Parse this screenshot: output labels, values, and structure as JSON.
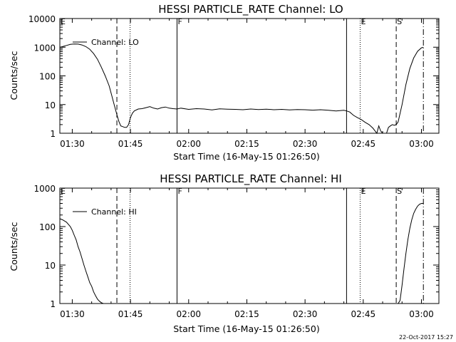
{
  "footer": {
    "timestamp": "22-Oct-2017 15:27"
  },
  "chart_data": [
    {
      "type": "line",
      "title": "HESSI PARTICLE_RATE Channel: LO",
      "xlabel": "Start Time (16-May-15 01:26:50)",
      "ylabel": "Counts/sec",
      "yscale": "log",
      "ylim": [
        1,
        10000
      ],
      "xlim_minutes": [
        86.8,
        184.5
      ],
      "x_ticks": [
        {
          "minute": 90,
          "label": "01:30"
        },
        {
          "minute": 105,
          "label": "01:45"
        },
        {
          "minute": 120,
          "label": "02:00"
        },
        {
          "minute": 135,
          "label": "02:15"
        },
        {
          "minute": 150,
          "label": "02:30"
        },
        {
          "minute": 165,
          "label": "02:45"
        },
        {
          "minute": 180,
          "label": "03:00"
        }
      ],
      "y_ticks": [
        {
          "value": 1,
          "label": "1"
        },
        {
          "value": 10,
          "label": "10"
        },
        {
          "value": 100,
          "label": "100"
        },
        {
          "value": 1000,
          "label": "1000"
        },
        {
          "value": 10000,
          "label": "10000"
        }
      ],
      "legend": {
        "label": "Channel: LO",
        "position": "top-left"
      },
      "markers": [
        {
          "minute": 86.8,
          "label": "E",
          "style": "solid"
        },
        {
          "minute": 101.5,
          "label": "",
          "style": "dashed"
        },
        {
          "minute": 104.9,
          "label": "",
          "style": "dotted"
        },
        {
          "minute": 117.0,
          "label": "F",
          "style": "solid"
        },
        {
          "minute": 160.7,
          "label": "",
          "style": "solid"
        },
        {
          "minute": 164.2,
          "label": "E",
          "style": "dotted"
        },
        {
          "minute": 173.5,
          "label": "S",
          "style": "dashed"
        },
        {
          "minute": 180.5,
          "label": "",
          "style": "dashdot"
        }
      ],
      "series": [
        {
          "x": [
            86.8,
            87.5,
            88.5,
            89.5,
            90.5,
            91.5,
            92.5,
            93.5,
            94.5,
            95.5,
            96.5,
            97.5,
            98.5,
            99.5,
            100.2,
            100.8,
            101.5,
            102.0,
            102.5,
            103.0,
            103.5,
            104.0,
            104.5,
            105.0,
            105.5,
            106.0,
            107.0,
            108.0,
            109.0,
            110.0,
            111.0,
            112.0,
            113.0,
            114.0,
            115.0,
            116.0,
            117.0,
            118.0,
            120.0,
            122.0,
            124.0,
            126.0,
            128.0,
            130.0,
            132.0,
            134.0,
            136.0,
            138.0,
            140.0,
            142.0,
            144.0,
            146.0,
            148.0,
            150.0,
            152.0,
            154.0,
            156.0,
            158.0,
            160.0,
            160.7,
            161.5,
            162.5,
            163.5,
            164.5,
            165.5,
            166.5,
            167.5,
            168.5,
            169.0,
            169.5,
            170.0,
            170.5,
            171.0,
            171.5,
            172.0,
            172.5,
            173.0,
            173.5,
            174.0,
            175.0,
            176.0,
            177.0,
            178.0,
            179.0,
            180.0,
            180.5
          ],
          "y": [
            1000,
            1050,
            1150,
            1250,
            1300,
            1280,
            1200,
            1050,
            850,
            600,
            380,
            200,
            100,
            45,
            20,
            10,
            4.5,
            2.6,
            1.8,
            1.7,
            1.6,
            1.6,
            2.0,
            3.5,
            5.0,
            6.0,
            7.0,
            7.2,
            7.8,
            8.5,
            7.5,
            7.0,
            7.8,
            8.2,
            7.5,
            7.2,
            7.0,
            7.5,
            6.8,
            7.2,
            7.0,
            6.5,
            7.1,
            6.9,
            6.8,
            6.6,
            7.0,
            6.7,
            6.9,
            6.6,
            6.8,
            6.5,
            6.7,
            6.6,
            6.4,
            6.6,
            6.3,
            6.0,
            6.3,
            6.0,
            5.5,
            4.2,
            3.5,
            3.0,
            2.4,
            2.0,
            1.5,
            1.0,
            1.8,
            1.2,
            1.0,
            0.9,
            1.0,
            1.6,
            1.8,
            2.0,
            1.9,
            2.0,
            2.5,
            10,
            50,
            180,
            420,
            720,
            950,
            1000
          ]
        }
      ]
    },
    {
      "type": "line",
      "title": "HESSI PARTICLE_RATE Channel: HI",
      "xlabel": "Start Time (16-May-15 01:26:50)",
      "ylabel": "Counts/sec",
      "yscale": "log",
      "ylim": [
        1,
        1000
      ],
      "xlim_minutes": [
        86.8,
        184.5
      ],
      "x_ticks": [
        {
          "minute": 90,
          "label": "01:30"
        },
        {
          "minute": 105,
          "label": "01:45"
        },
        {
          "minute": 120,
          "label": "02:00"
        },
        {
          "minute": 135,
          "label": "02:15"
        },
        {
          "minute": 150,
          "label": "02:30"
        },
        {
          "minute": 165,
          "label": "02:45"
        },
        {
          "minute": 180,
          "label": "03:00"
        }
      ],
      "y_ticks": [
        {
          "value": 1,
          "label": "1"
        },
        {
          "value": 10,
          "label": "10"
        },
        {
          "value": 100,
          "label": "100"
        },
        {
          "value": 1000,
          "label": "1000"
        }
      ],
      "legend": {
        "label": "Channel: HI",
        "position": "top-left"
      },
      "markers": [
        {
          "minute": 86.8,
          "label": "E",
          "style": "solid"
        },
        {
          "minute": 101.5,
          "label": "",
          "style": "dashed"
        },
        {
          "minute": 104.9,
          "label": "",
          "style": "dotted"
        },
        {
          "minute": 117.0,
          "label": "F",
          "style": "solid"
        },
        {
          "minute": 160.7,
          "label": "",
          "style": "solid"
        },
        {
          "minute": 164.2,
          "label": "E",
          "style": "dotted"
        },
        {
          "minute": 173.5,
          "label": "S",
          "style": "dashed"
        },
        {
          "minute": 180.5,
          "label": "",
          "style": "dashdot"
        }
      ],
      "series": [
        {
          "x": [
            86.8,
            87.5,
            88.5,
            89.5,
            90.0,
            90.5,
            91.0,
            91.5,
            92.0,
            92.5,
            93.0,
            93.5,
            94.0,
            94.5,
            95.0,
            95.5,
            96.0,
            96.5,
            97.0,
            97.5,
            98.0,
            98.5,
            99.0,
            174.0,
            174.5,
            175.0,
            175.5,
            176.0,
            176.5,
            177.0,
            177.5,
            178.0,
            178.5,
            179.0,
            179.5,
            180.0,
            180.5
          ],
          "y": [
            160,
            150,
            130,
            100,
            80,
            60,
            45,
            30,
            22,
            15,
            10,
            7,
            5,
            3.5,
            2.8,
            2.0,
            1.6,
            1.3,
            1.15,
            1.05,
            1.0,
            0.9,
            0.8,
            0.8,
            1.2,
            3,
            8,
            20,
            45,
            90,
            150,
            220,
            280,
            340,
            380,
            400,
            400
          ]
        }
      ]
    }
  ]
}
